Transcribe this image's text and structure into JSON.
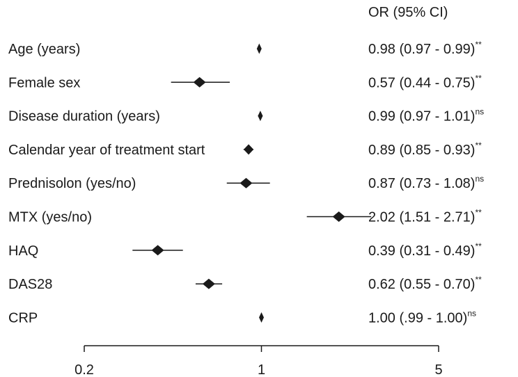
{
  "chart_data": {
    "type": "forest",
    "title": "",
    "xlabel": "",
    "ylabel": "",
    "x_scale": "log",
    "xlim": [
      0.2,
      5
    ],
    "reference_line": 1,
    "ci_header": "OR (95% CI)",
    "x_ticks": [
      {
        "value": 0.2,
        "label": "0.2"
      },
      {
        "value": 1,
        "label": "1"
      },
      {
        "value": 5,
        "label": "5"
      }
    ],
    "rows": [
      {
        "label": "Age (years)",
        "or": 0.98,
        "lo": 0.97,
        "hi": 0.99,
        "ci_text": "0.98 (0.97 - 0.99)",
        "sig": "**"
      },
      {
        "label": "Female sex",
        "or": 0.57,
        "lo": 0.44,
        "hi": 0.75,
        "ci_text": "0.57 (0.44 - 0.75)",
        "sig": "**"
      },
      {
        "label": "Disease duration (years)",
        "or": 0.99,
        "lo": 0.97,
        "hi": 1.01,
        "ci_text": "0.99 (0.97 - 1.01)",
        "sig": "ns"
      },
      {
        "label": "Calendar year of treatment start",
        "or": 0.89,
        "lo": 0.85,
        "hi": 0.93,
        "ci_text": "0.89 (0.85 - 0.93)",
        "sig": "**"
      },
      {
        "label": "Prednisolon (yes/no)",
        "or": 0.87,
        "lo": 0.73,
        "hi": 1.08,
        "ci_text": "0.87 (0.73 - 1.08)",
        "sig": "ns"
      },
      {
        "label": "MTX (yes/no)",
        "or": 2.02,
        "lo": 1.51,
        "hi": 2.71,
        "ci_text": "2.02 (1.51 - 2.71)",
        "sig": "**"
      },
      {
        "label": "HAQ",
        "or": 0.39,
        "lo": 0.31,
        "hi": 0.49,
        "ci_text": "0.39 (0.31 - 0.49)",
        "sig": "**"
      },
      {
        "label": "DAS28",
        "or": 0.62,
        "lo": 0.55,
        "hi": 0.7,
        "ci_text": "0.62 (0.55 - 0.70)",
        "sig": "**"
      },
      {
        "label": "CRP",
        "or": 1.0,
        "lo": 0.99,
        "hi": 1.0,
        "ci_text": "1.00 (.99 - 1.00)",
        "sig": "ns"
      }
    ],
    "colors": {
      "marker": "#1a1a1a",
      "line": "#1a1a1a",
      "text": "#1a1a1a"
    }
  }
}
